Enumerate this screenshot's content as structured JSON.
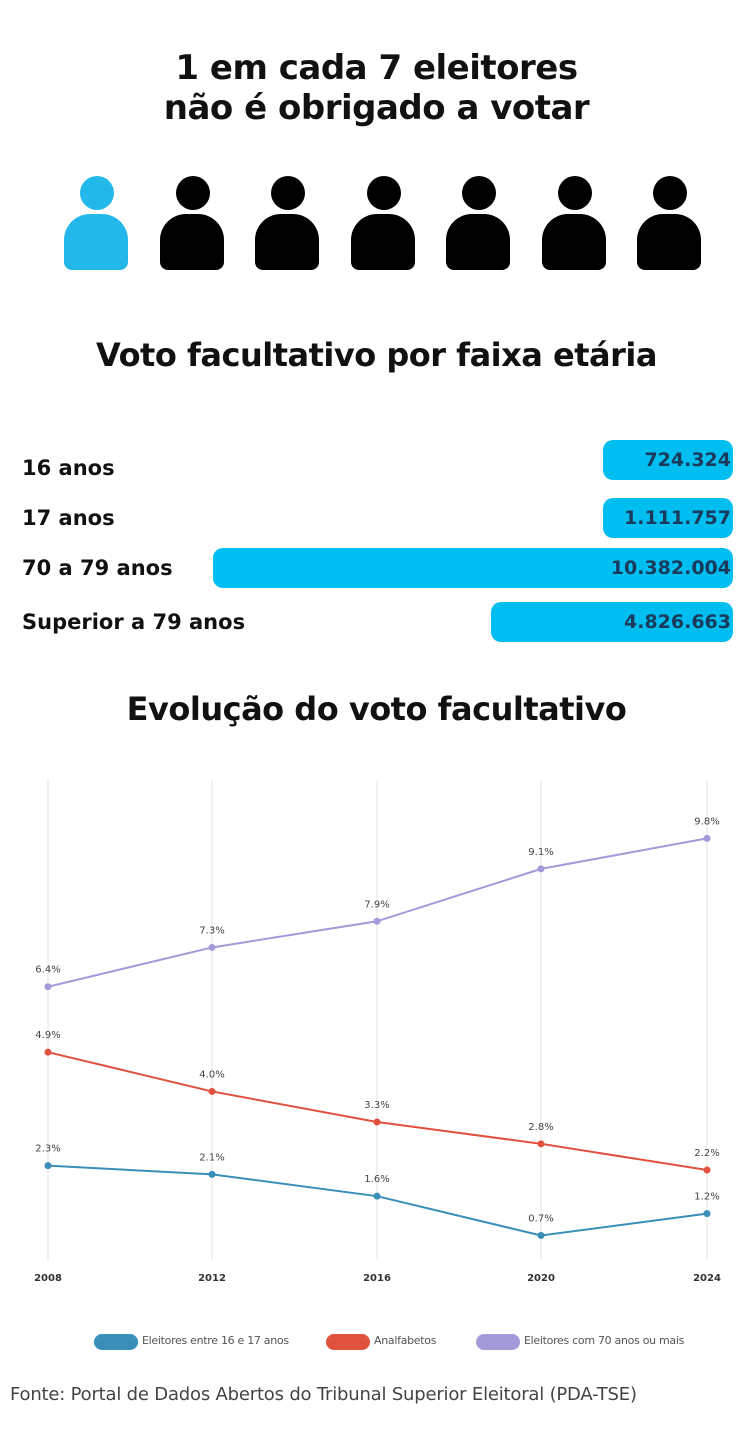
{
  "headline": {
    "line1": "1 em cada 7 eleitores",
    "line2": "não é obrigado a votar"
  },
  "pictogram": {
    "total": 7,
    "highlighted": 1,
    "highlight_color": "#22b8ea",
    "base_color": "#000000",
    "icon": "person-icon"
  },
  "age_section": {
    "title": "Voto facultativo por faixa etária",
    "bar_color": "#00bff0",
    "rows": [
      {
        "label": "16 anos",
        "value_text": "724.324",
        "value": 724324
      },
      {
        "label": "17 anos",
        "value_text": "1.111.757",
        "value": 1111757
      },
      {
        "label": "70 a 79 anos",
        "value_text": "10.382.004",
        "value": 10382004
      },
      {
        "label": "Superior a 79 anos",
        "value_text": "4.826.663",
        "value": 4826663
      }
    ]
  },
  "evolution_section": {
    "title": "Evolução do voto facultativo"
  },
  "chart_data": {
    "type": "line",
    "x": [
      "2008",
      "2012",
      "2016",
      "2020",
      "2024"
    ],
    "ylim": [
      0,
      11
    ],
    "grid": "vertical",
    "legend_position": "bottom",
    "series": [
      {
        "name": "Eleitores entre 16 e 17 anos",
        "color": "#3a8fb8",
        "values": [
          2.3,
          2.1,
          1.6,
          0.7,
          1.2
        ],
        "labels": [
          "2.3%",
          "2.1%",
          "1.6%",
          "0.7%",
          "1.2%"
        ]
      },
      {
        "name": "Analfabetos",
        "color": "#e0513e",
        "values": [
          4.9,
          4.0,
          3.3,
          2.8,
          2.2
        ],
        "labels": [
          "4.9%",
          "4.0%",
          "3.3%",
          "2.8%",
          "2.2%"
        ]
      },
      {
        "name": "Eleitores com 70 anos ou mais",
        "color": "#a39ad9",
        "values": [
          6.4,
          7.3,
          7.9,
          9.1,
          9.8
        ],
        "labels": [
          "6.4%",
          "7.3%",
          "7.9%",
          "9.1%",
          "9.8%"
        ]
      }
    ]
  },
  "source": "Fonte: Portal de Dados Abertos do Tribunal Superior Eleitoral (PDA-TSE)"
}
